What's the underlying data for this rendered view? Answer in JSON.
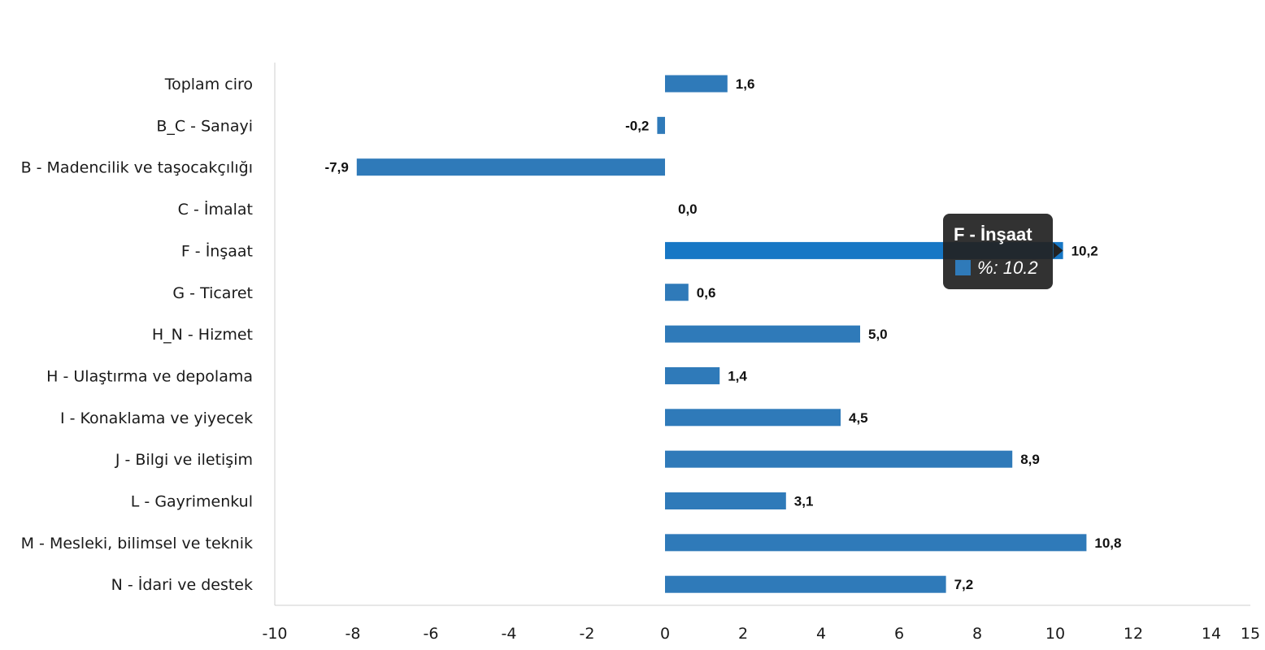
{
  "chart_data": {
    "type": "bar",
    "orientation": "horizontal",
    "categories": [
      "Toplam ciro",
      "B_C - Sanayi",
      "B - Madencilik ve taşocakçılığı",
      "C - İmalat",
      "F - İnşaat",
      "G - Ticaret",
      "H_N - Hizmet",
      "H - Ulaştırma ve depolama",
      "I - Konaklama ve yiyecek",
      "J - Bilgi ve iletişim",
      "L - Gayrimenkul",
      "M - Mesleki, bilimsel ve teknik",
      "N - İdari ve destek"
    ],
    "values": [
      1.6,
      -0.2,
      -7.9,
      0.0,
      10.2,
      0.6,
      5.0,
      1.4,
      4.5,
      8.9,
      3.1,
      10.8,
      7.2
    ],
    "data_labels": [
      "1,6",
      "-0,2",
      "-7,9",
      "0,0",
      "10,2",
      "0,6",
      "5,0",
      "1,4",
      "4,5",
      "8,9",
      "3,1",
      "10,8",
      "7,2"
    ],
    "x_ticks": [
      "-10",
      "-8",
      "-6",
      "-4",
      "-2",
      "0",
      "2",
      "4",
      "6",
      "8",
      "10",
      "12",
      "14",
      "15"
    ],
    "xlim": [
      -10,
      15
    ],
    "title": "",
    "xlabel": "",
    "ylabel": "",
    "grid": false,
    "legend": "none",
    "bar_color": "#2f7ab9",
    "highlight_color": "#1777c5",
    "highlight_index": 4,
    "tooltip": {
      "title": "F - İnşaat",
      "text": "%: 10.2",
      "swatch_color": "#2f7ab9",
      "background": "#222222"
    }
  }
}
